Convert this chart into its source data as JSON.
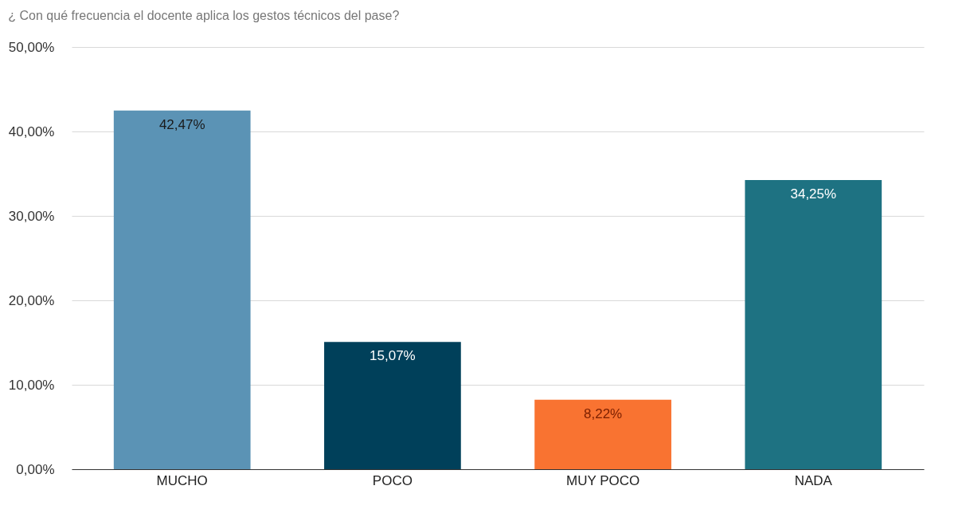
{
  "chart_data": {
    "type": "bar",
    "title": "¿ Con qué frecuencia el docente aplica los gestos técnicos  del pase?",
    "categories": [
      "MUCHO",
      "POCO",
      "MUY POCO",
      "NADA"
    ],
    "values": [
      42.47,
      15.07,
      8.22,
      34.25
    ],
    "colors": [
      "#5b93b5",
      "#00405a",
      "#f97331",
      "#1e7282"
    ],
    "value_labels": [
      "42,47%",
      "15,07%",
      "8,22%",
      "34,25%"
    ],
    "ylim": [
      0,
      50
    ],
    "yticks": [
      {
        "value": 0,
        "label": "0,00%"
      },
      {
        "value": 10,
        "label": "10,00%"
      },
      {
        "value": 20,
        "label": "20,00%"
      },
      {
        "value": 30,
        "label": "30,00%"
      },
      {
        "value": 40,
        "label": "40,00%"
      },
      {
        "value": 50,
        "label": "50,00%"
      }
    ],
    "grid": "y"
  }
}
